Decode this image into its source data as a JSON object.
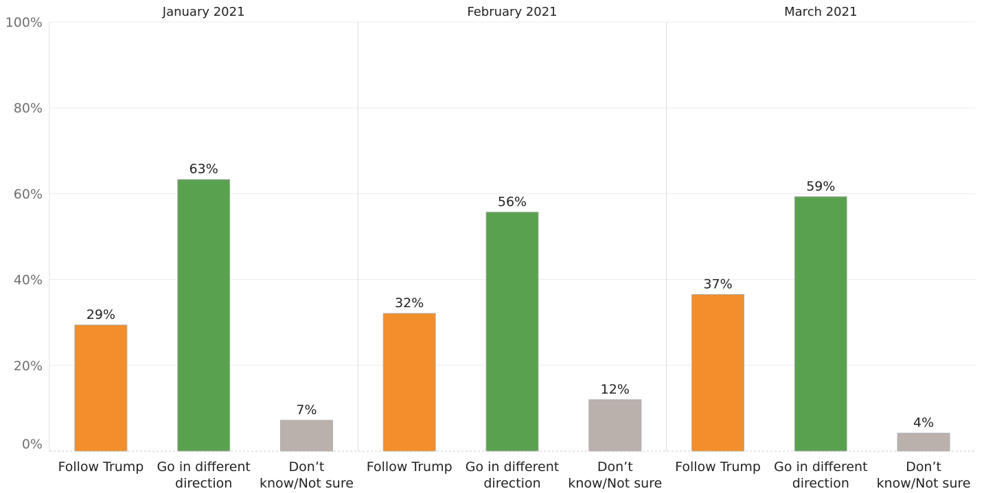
{
  "chart_data": {
    "type": "bar",
    "ylim": [
      0,
      100
    ],
    "y_ticks": [
      "0%",
      "20%",
      "40%",
      "60%",
      "80%",
      "100%"
    ],
    "y_tick_values": [
      0,
      20,
      40,
      60,
      80,
      100
    ],
    "categories": [
      [
        "Follow Trump"
      ],
      [
        "Go in different",
        "direction"
      ],
      [
        "Don’t",
        "know/Not sure"
      ]
    ],
    "category_colors": [
      "#f28e2b",
      "#59a14f",
      "#bab0ac"
    ],
    "bar_border_color": "#b0b0b0",
    "grid": true,
    "legend": "none",
    "panels": [
      {
        "title": "January 2021",
        "values": [
          29.4,
          63.3,
          7.2
        ],
        "labels": [
          "29%",
          "63%",
          "7%"
        ]
      },
      {
        "title": "February 2021",
        "values": [
          32.1,
          55.7,
          12.0
        ],
        "labels": [
          "32%",
          "56%",
          "12%"
        ]
      },
      {
        "title": "March 2021",
        "values": [
          36.5,
          59.3,
          4.2
        ],
        "labels": [
          "37%",
          "59%",
          "4%"
        ]
      }
    ]
  }
}
